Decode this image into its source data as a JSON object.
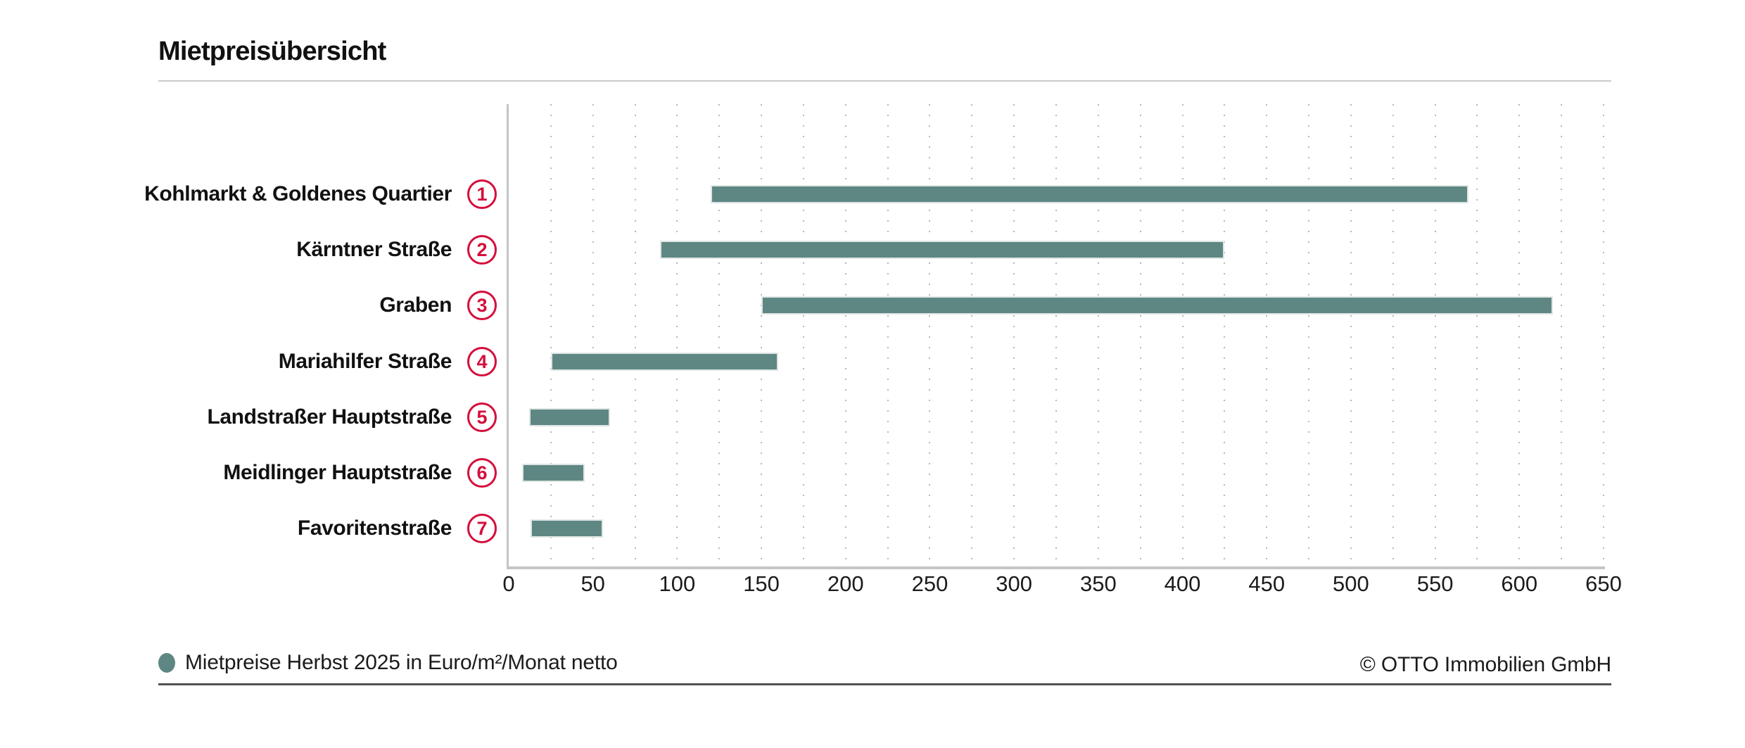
{
  "title": "Mietpreisübersicht",
  "legend": {
    "label": "Mietpreise Herbst 2025 in Euro/m²/Monat netto"
  },
  "copyright": "© OTTO Immobilien GmbH",
  "colors": {
    "bar_teal": "#5E8783",
    "badge_red": "#D50F3C",
    "axis_gray": "#C3C6C6",
    "rule_light": "#C9CBCC",
    "rule_dark": "#4F5254",
    "text": "#1A1A1A"
  },
  "chart_data": {
    "type": "bar",
    "orientation": "horizontal",
    "title": "Mietpreisübersicht",
    "categories": [
      "Kohlmarkt & Goldenes Quartier",
      "Kärntner Straße",
      "Graben",
      "Mariahilfer Straße",
      "Landstraßer Hauptstraße",
      "Meidlinger Hauptstraße",
      "Favoritenstraße"
    ],
    "markers": [
      "1",
      "2",
      "3",
      "4",
      "5",
      "6",
      "7"
    ],
    "series": [
      {
        "name": "Mietpreise Herbst 2025 in Euro/m²/Monat netto",
        "unit": "Euro/m²/Monat netto",
        "ranges": [
          [
            120,
            570
          ],
          [
            90,
            425
          ],
          [
            150,
            620
          ],
          [
            25,
            160
          ],
          [
            12,
            60
          ],
          [
            8,
            45
          ],
          [
            13,
            56
          ]
        ]
      }
    ],
    "xlim": [
      0,
      650
    ],
    "x_ticks": [
      0,
      50,
      100,
      150,
      200,
      250,
      300,
      350,
      400,
      450,
      500,
      550,
      600,
      650
    ],
    "grid_step": 25,
    "grid": "dotted-vertical",
    "legend_position": "bottom-left",
    "xlabel": "",
    "ylabel": ""
  }
}
